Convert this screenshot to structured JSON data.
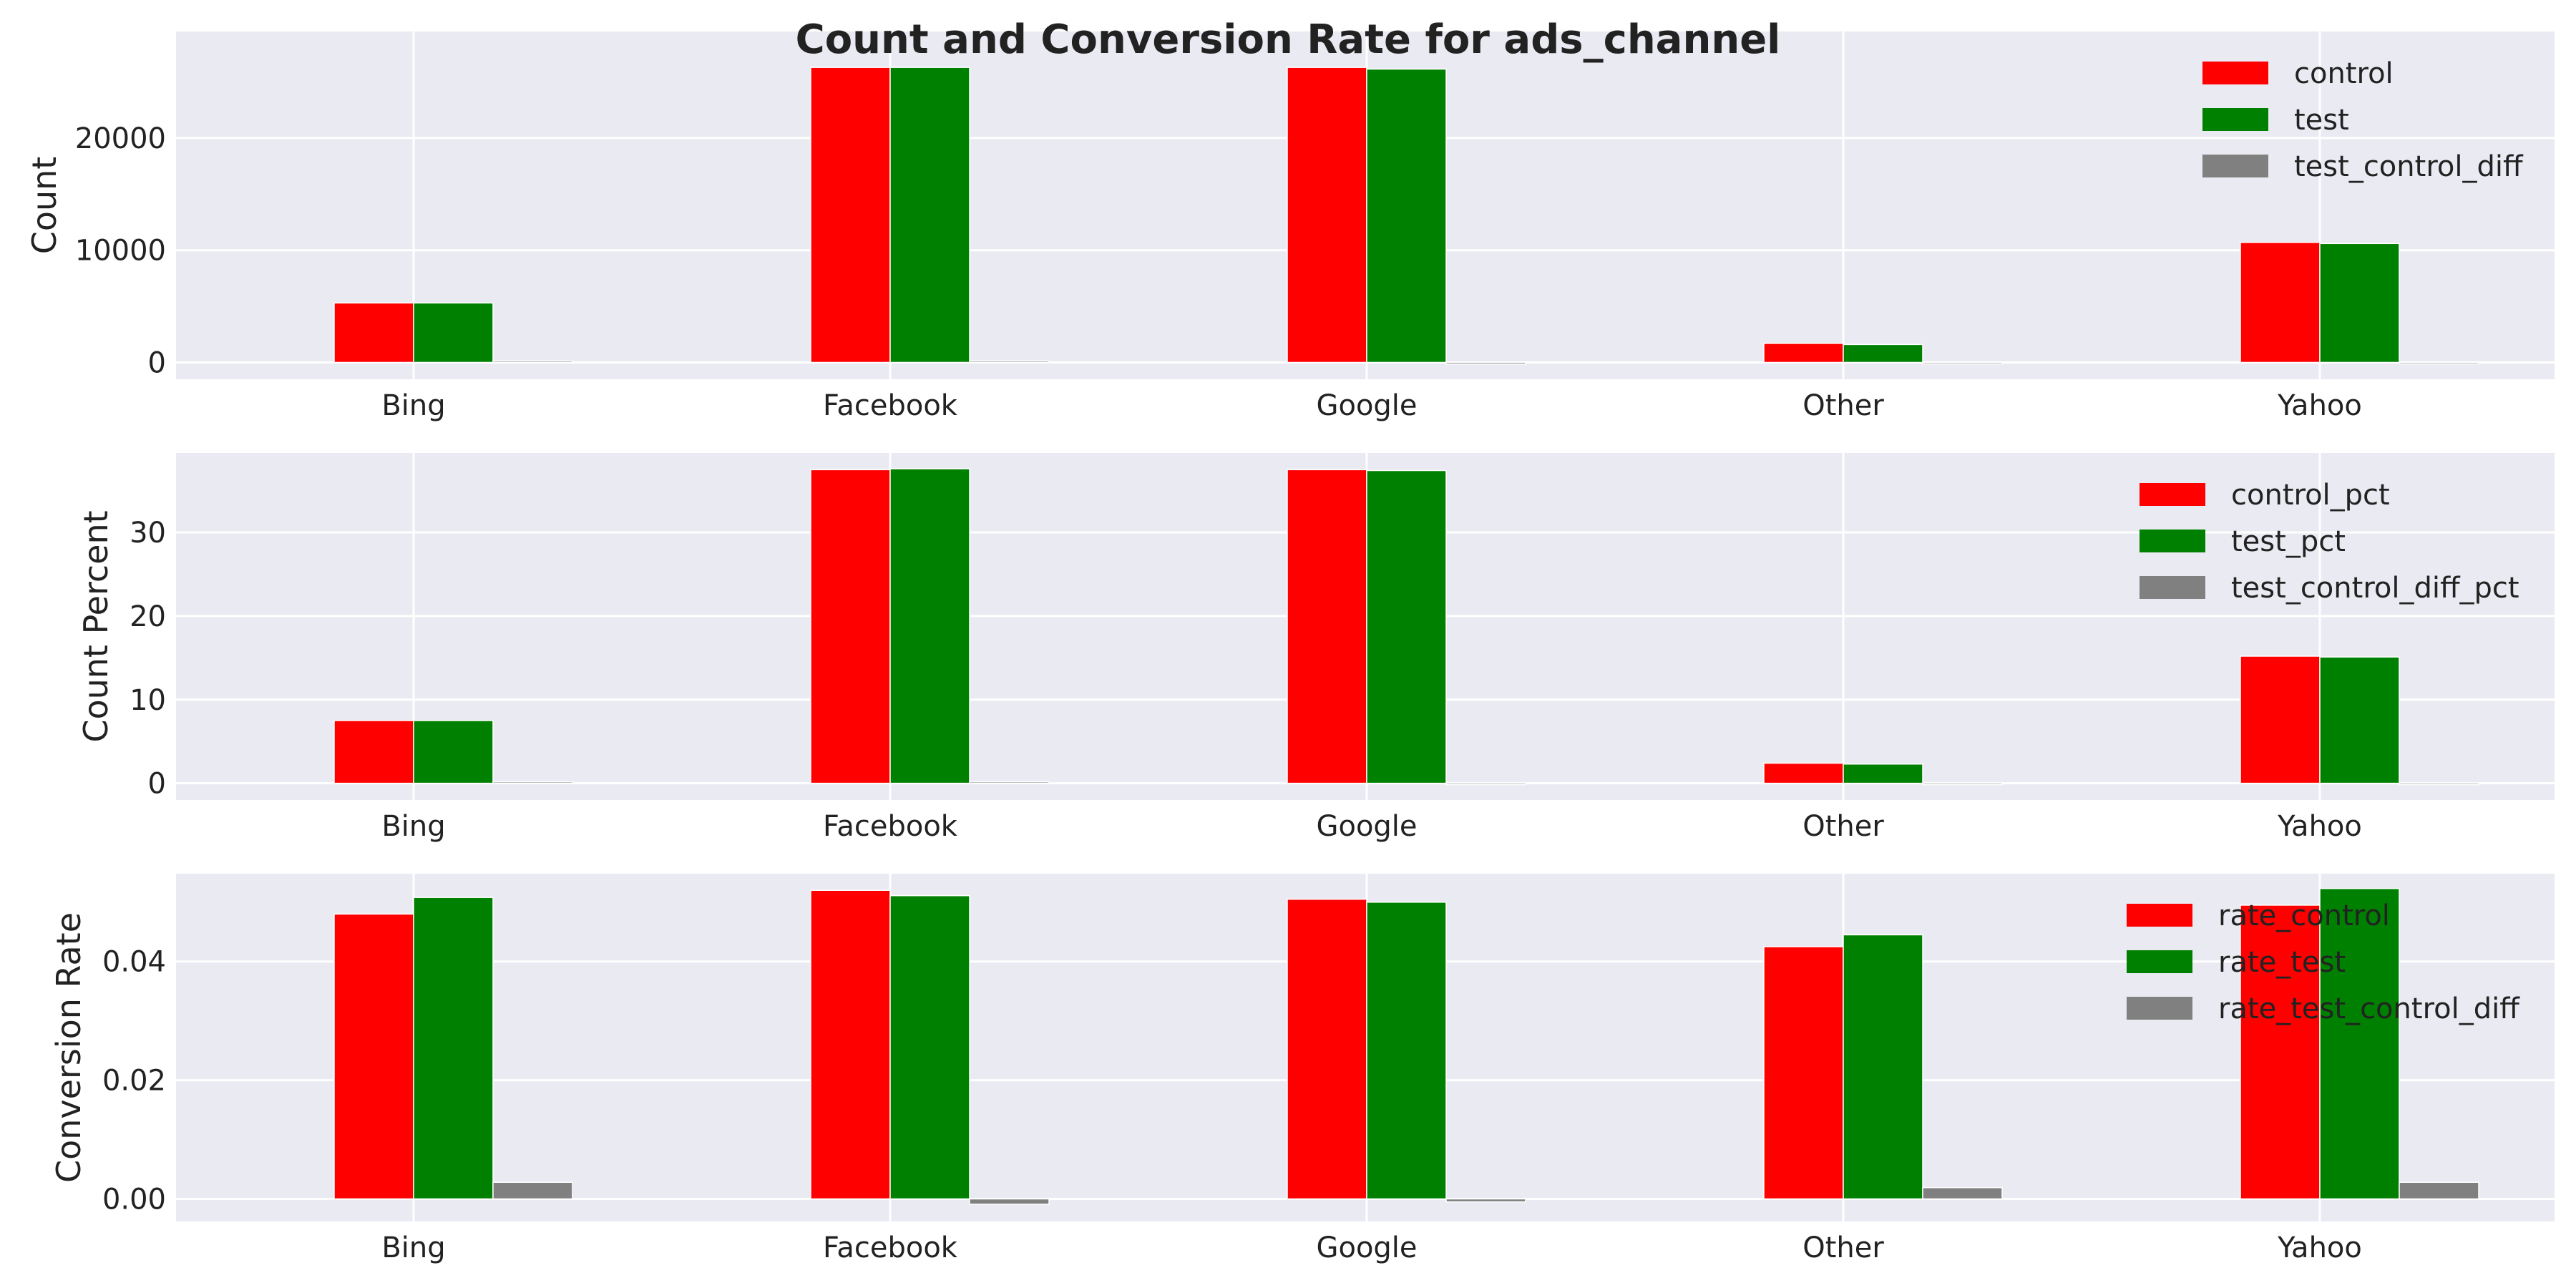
{
  "figure": {
    "title": "Count and Conversion Rate for ads_channel",
    "background": "#ffffff",
    "panel_background": "#eaeaf2",
    "grid_color": "#ffffff"
  },
  "chart_data": [
    {
      "type": "bar",
      "categories": [
        "Bing",
        "Facebook",
        "Google",
        "Other",
        "Yahoo"
      ],
      "ylabel": "Count",
      "ylim": [
        -1500,
        29500
      ],
      "yticks": [
        0,
        10000,
        20000
      ],
      "ytick_labels": [
        "0",
        "10000",
        "20000"
      ],
      "grid": true,
      "legend_position": "top-right",
      "series": [
        {
          "name": "control",
          "color": "#ff0000",
          "values": [
            5300,
            26300,
            26300,
            1700,
            10700
          ]
        },
        {
          "name": "test",
          "color": "#008000",
          "values": [
            5300,
            26300,
            26150,
            1600,
            10600
          ]
        },
        {
          "name": "test_control_diff",
          "color": "#808080",
          "values": [
            0,
            0,
            -150,
            -100,
            -100
          ]
        }
      ]
    },
    {
      "type": "bar",
      "categories": [
        "Bing",
        "Facebook",
        "Google",
        "Other",
        "Yahoo"
      ],
      "ylabel": "Count Percent",
      "ylim": [
        -2,
        39.5
      ],
      "yticks": [
        0,
        10,
        20,
        30
      ],
      "ytick_labels": [
        "0",
        "10",
        "20",
        "30"
      ],
      "grid": true,
      "legend_position": "top-right",
      "series": [
        {
          "name": "control_pct",
          "color": "#ff0000",
          "values": [
            7.5,
            37.5,
            37.5,
            2.4,
            15.2
          ]
        },
        {
          "name": "test_pct",
          "color": "#008000",
          "values": [
            7.5,
            37.6,
            37.4,
            2.3,
            15.1
          ]
        },
        {
          "name": "test_control_diff_pct",
          "color": "#808080",
          "values": [
            0,
            0.1,
            -0.1,
            -0.1,
            -0.1
          ]
        }
      ]
    },
    {
      "type": "bar",
      "categories": [
        "Bing",
        "Facebook",
        "Google",
        "Other",
        "Yahoo"
      ],
      "ylabel": "Conversion Rate",
      "ylim": [
        -0.0038,
        0.0548
      ],
      "yticks": [
        0.0,
        0.02,
        0.04
      ],
      "ytick_labels": [
        "0.00",
        "0.02",
        "0.04"
      ],
      "grid": true,
      "legend_position": "top-right",
      "series": [
        {
          "name": "rate_control",
          "color": "#ff0000",
          "values": [
            0.048,
            0.052,
            0.0505,
            0.0425,
            0.0495
          ]
        },
        {
          "name": "rate_test",
          "color": "#008000",
          "values": [
            0.0508,
            0.0511,
            0.05,
            0.0445,
            0.0523
          ]
        },
        {
          "name": "rate_test_control_diff",
          "color": "#808080",
          "values": [
            0.0028,
            -0.0009,
            -0.0005,
            0.0019,
            0.0028
          ]
        }
      ]
    }
  ]
}
